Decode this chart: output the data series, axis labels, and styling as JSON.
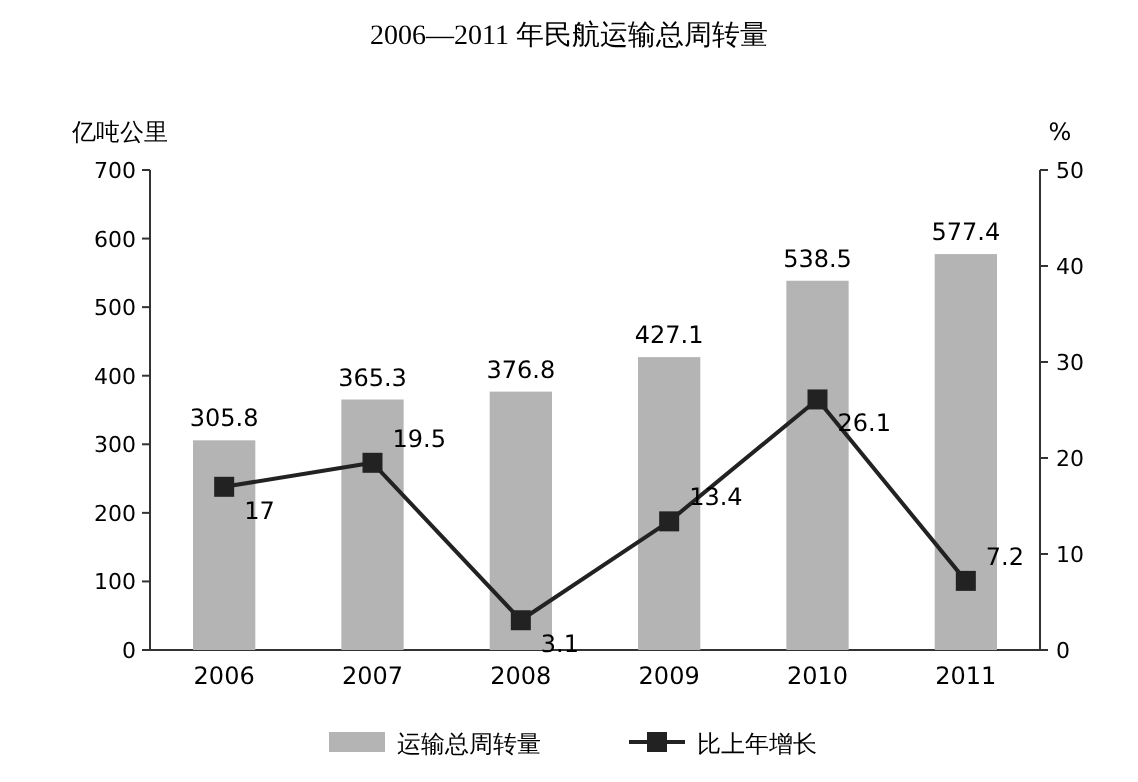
{
  "chart_data": {
    "type": "bar",
    "title": "2006—2011 年民航运输总周转量",
    "ylabel": "亿吨公里",
    "y2label": "%",
    "categories": [
      "2006",
      "2007",
      "2008",
      "2009",
      "2010",
      "2011"
    ],
    "series": [
      {
        "name": "运输总周转量",
        "color": "#b4b4b4",
        "values": [
          305.8,
          365.3,
          376.8,
          427.1,
          538.5,
          577.4
        ]
      },
      {
        "name": "比上年增长",
        "type": "line",
        "axis": "y2",
        "color": "#222222",
        "marker": "square",
        "values": [
          17,
          19.5,
          3.1,
          13.4,
          26.1,
          7.2
        ]
      }
    ],
    "ylim": [
      0,
      700
    ],
    "yticks": [
      0,
      100,
      200,
      300,
      400,
      500,
      600,
      700
    ],
    "y2lim": [
      0,
      50
    ],
    "y2ticks": [
      0,
      10,
      20,
      30,
      40,
      50
    ],
    "data_labels": true,
    "legend": "bottom",
    "grid": false
  }
}
